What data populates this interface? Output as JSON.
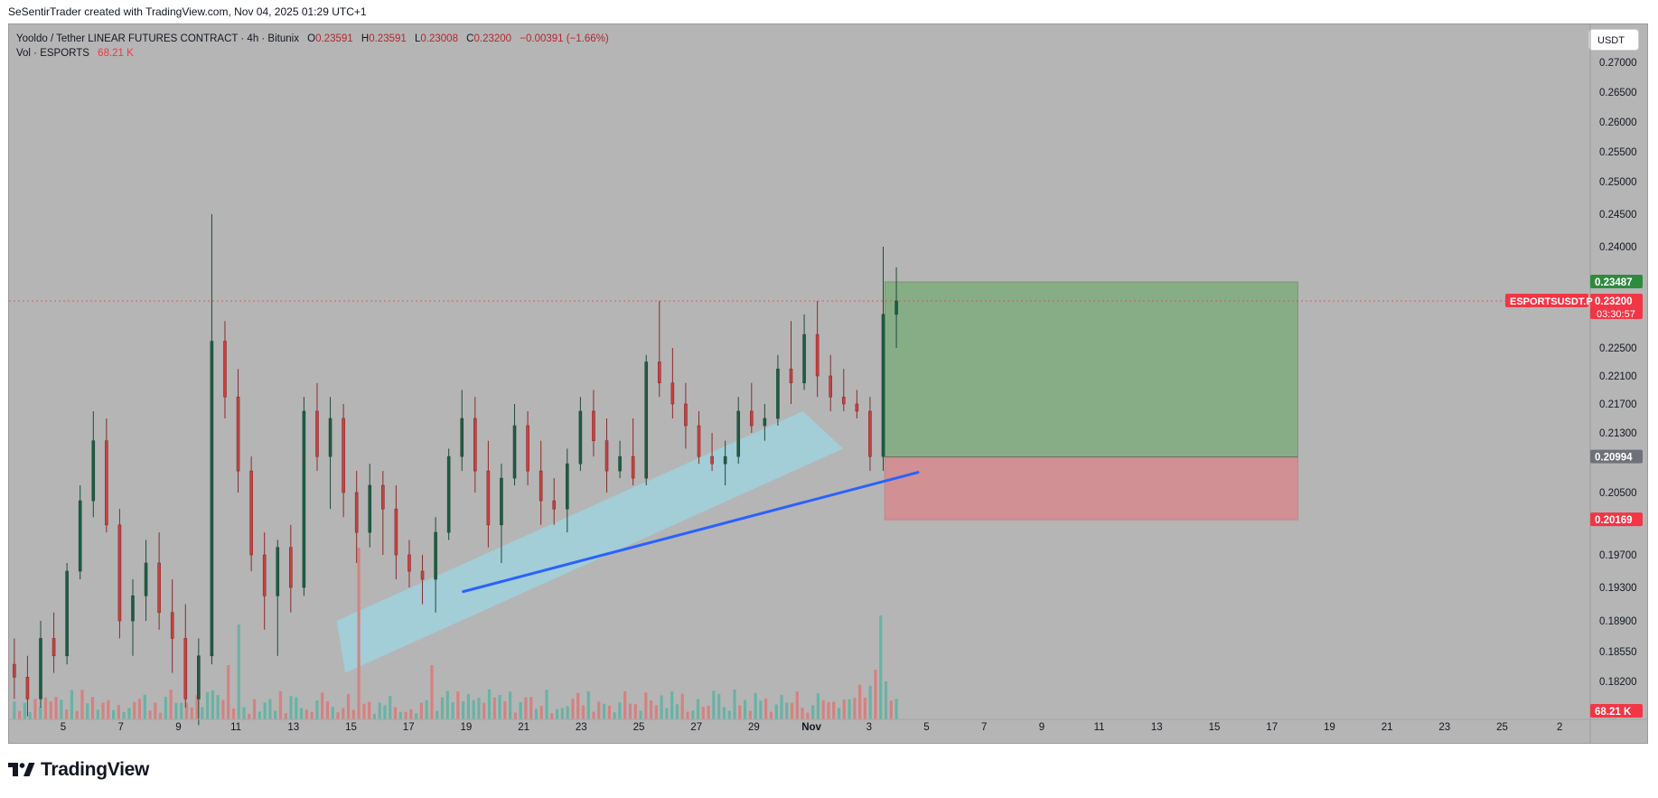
{
  "header": {
    "credit": "SeSentirTrader created with TradingView.com, Nov 04, 2025 01:29 UTC+1"
  },
  "legend": {
    "symbol_line": "Yooldo / Tether LINEAR FUTURES CONTRACT · 4h · Bitunix",
    "open_k": "O",
    "open_v": "0.23591",
    "high_k": "H",
    "high_v": "0.23591",
    "low_k": "L",
    "low_v": "0.23008",
    "close_k": "C",
    "close_v": "0.23200",
    "change": "−0.00391 (−1.66%)",
    "vol_label": "Vol · ESPORTS",
    "vol_value": "68.21 K"
  },
  "currency_button": "USDT",
  "brand": {
    "name": "TradingView"
  },
  "colors": {
    "background": "#b5b5b5",
    "up": "#22ab94",
    "up_body": "#1e5c43",
    "down": "#c8413f",
    "trendline": "#2962ff",
    "channel": "#9fd3e0",
    "target_zone": "#7fab7f",
    "stop_zone": "#d68a8e",
    "price_line": "#f23645"
  },
  "chart_data": {
    "type": "candlestick",
    "symbol": "ESPORTSUSDT.P",
    "timeframe": "4h",
    "y_axis": {
      "min": 0.176,
      "max": 0.273,
      "ticks": [
        "0.27000",
        "0.26500",
        "0.26000",
        "0.25500",
        "0.25000",
        "0.24500",
        "0.24000",
        "0.22500",
        "0.22100",
        "0.21700",
        "0.21300",
        "0.20500",
        "0.19700",
        "0.19300",
        "0.18900",
        "0.18550",
        "0.18200"
      ]
    },
    "x_axis": {
      "labels": [
        "5",
        "7",
        "9",
        "11",
        "13",
        "15",
        "17",
        "19",
        "21",
        "23",
        "25",
        "27",
        "29",
        "Nov",
        "3",
        "5",
        "7",
        "9",
        "11",
        "13",
        "15",
        "17",
        "19",
        "21",
        "23",
        "25",
        "2"
      ],
      "label_positions_day": [
        5,
        7,
        9,
        11,
        13,
        15,
        17,
        19,
        21,
        23,
        25,
        27,
        29,
        31,
        33,
        35,
        37,
        39,
        41,
        43,
        45,
        47,
        49,
        51,
        53,
        55,
        57
      ],
      "range_day": [
        3.2,
        60.0
      ]
    },
    "last_price": {
      "label": "ESPORTSUSDT.P",
      "value": "0.23200",
      "countdown": "03:30:57"
    },
    "price_tags": [
      {
        "value": "0.23487",
        "role": "target"
      },
      {
        "value": "0.20994",
        "role": "entry"
      },
      {
        "value": "0.20169",
        "role": "stop"
      }
    ],
    "volume_tag": "68.21 K",
    "position_tool": {
      "start_day": 33.55,
      "end_day": 47.9,
      "target": 0.23487,
      "entry": 0.20994,
      "stop": 0.20169
    },
    "trendline": {
      "from": {
        "day": 18.9,
        "price": 0.1925
      },
      "to": {
        "day": 34.7,
        "price": 0.2078
      }
    },
    "channel": [
      {
        "day": 14.5,
        "price": 0.189
      },
      {
        "day": 30.7,
        "price": 0.216
      },
      {
        "day": 32.1,
        "price": 0.211
      },
      {
        "day": 14.8,
        "price": 0.183
      }
    ],
    "candles_range": {
      "start_day": 3.3,
      "end_day": 33.95
    },
    "candles_note": "OHLC sequence approximated from chart",
    "ohlc_series": [
      [
        0.184,
        0.187,
        0.18,
        0.1825
      ],
      [
        0.1825,
        0.185,
        0.178,
        0.18
      ],
      [
        0.18,
        0.189,
        0.179,
        0.187
      ],
      [
        0.187,
        0.19,
        0.183,
        0.185
      ],
      [
        0.185,
        0.196,
        0.184,
        0.195
      ],
      [
        0.195,
        0.206,
        0.194,
        0.204
      ],
      [
        0.204,
        0.216,
        0.202,
        0.212
      ],
      [
        0.212,
        0.215,
        0.2,
        0.201
      ],
      [
        0.201,
        0.203,
        0.187,
        0.189
      ],
      [
        0.189,
        0.194,
        0.185,
        0.192
      ],
      [
        0.192,
        0.199,
        0.189,
        0.196
      ],
      [
        0.196,
        0.2,
        0.188,
        0.19
      ],
      [
        0.19,
        0.194,
        0.183,
        0.187
      ],
      [
        0.187,
        0.191,
        0.179,
        0.18
      ],
      [
        0.18,
        0.187,
        0.177,
        0.185
      ],
      [
        0.185,
        0.245,
        0.184,
        0.226
      ],
      [
        0.226,
        0.229,
        0.215,
        0.218
      ],
      [
        0.218,
        0.222,
        0.205,
        0.208
      ],
      [
        0.208,
        0.21,
        0.195,
        0.197
      ],
      [
        0.197,
        0.2,
        0.188,
        0.192
      ],
      [
        0.192,
        0.199,
        0.185,
        0.198
      ],
      [
        0.198,
        0.201,
        0.19,
        0.193
      ],
      [
        0.193,
        0.218,
        0.192,
        0.216
      ],
      [
        0.216,
        0.22,
        0.208,
        0.21
      ],
      [
        0.21,
        0.218,
        0.203,
        0.215
      ],
      [
        0.215,
        0.217,
        0.202,
        0.205
      ],
      [
        0.205,
        0.208,
        0.196,
        0.2
      ],
      [
        0.2,
        0.209,
        0.198,
        0.206
      ],
      [
        0.206,
        0.208,
        0.197,
        0.203
      ],
      [
        0.203,
        0.206,
        0.194,
        0.197
      ],
      [
        0.197,
        0.199,
        0.193,
        0.195
      ],
      [
        0.195,
        0.197,
        0.191,
        0.194
      ],
      [
        0.194,
        0.202,
        0.19,
        0.2
      ],
      [
        0.2,
        0.211,
        0.199,
        0.21
      ],
      [
        0.21,
        0.219,
        0.208,
        0.215
      ],
      [
        0.215,
        0.218,
        0.205,
        0.208
      ],
      [
        0.208,
        0.212,
        0.198,
        0.201
      ],
      [
        0.201,
        0.209,
        0.196,
        0.207
      ],
      [
        0.207,
        0.217,
        0.206,
        0.214
      ],
      [
        0.214,
        0.216,
        0.206,
        0.208
      ],
      [
        0.208,
        0.212,
        0.201,
        0.204
      ],
      [
        0.204,
        0.207,
        0.201,
        0.203
      ],
      [
        0.203,
        0.211,
        0.2,
        0.209
      ],
      [
        0.209,
        0.218,
        0.208,
        0.216
      ],
      [
        0.216,
        0.219,
        0.21,
        0.212
      ],
      [
        0.212,
        0.215,
        0.205,
        0.208
      ],
      [
        0.208,
        0.212,
        0.207,
        0.21
      ],
      [
        0.21,
        0.215,
        0.206,
        0.207
      ],
      [
        0.207,
        0.224,
        0.206,
        0.223
      ],
      [
        0.223,
        0.232,
        0.218,
        0.22
      ],
      [
        0.22,
        0.225,
        0.215,
        0.217
      ],
      [
        0.217,
        0.22,
        0.211,
        0.214
      ],
      [
        0.214,
        0.216,
        0.209,
        0.21
      ],
      [
        0.21,
        0.213,
        0.208,
        0.209
      ],
      [
        0.209,
        0.212,
        0.206,
        0.21
      ],
      [
        0.21,
        0.218,
        0.209,
        0.216
      ],
      [
        0.216,
        0.22,
        0.213,
        0.214
      ],
      [
        0.214,
        0.217,
        0.212,
        0.215
      ],
      [
        0.215,
        0.224,
        0.214,
        0.222
      ],
      [
        0.222,
        0.229,
        0.217,
        0.22
      ],
      [
        0.22,
        0.23,
        0.219,
        0.227
      ],
      [
        0.227,
        0.232,
        0.218,
        0.221
      ],
      [
        0.221,
        0.224,
        0.216,
        0.218
      ],
      [
        0.218,
        0.222,
        0.216,
        0.217
      ],
      [
        0.217,
        0.219,
        0.215,
        0.216
      ],
      [
        0.216,
        0.218,
        0.208,
        0.21
      ],
      [
        0.21,
        0.24,
        0.208,
        0.23
      ],
      [
        0.23,
        0.237,
        0.225,
        0.232
      ]
    ]
  }
}
